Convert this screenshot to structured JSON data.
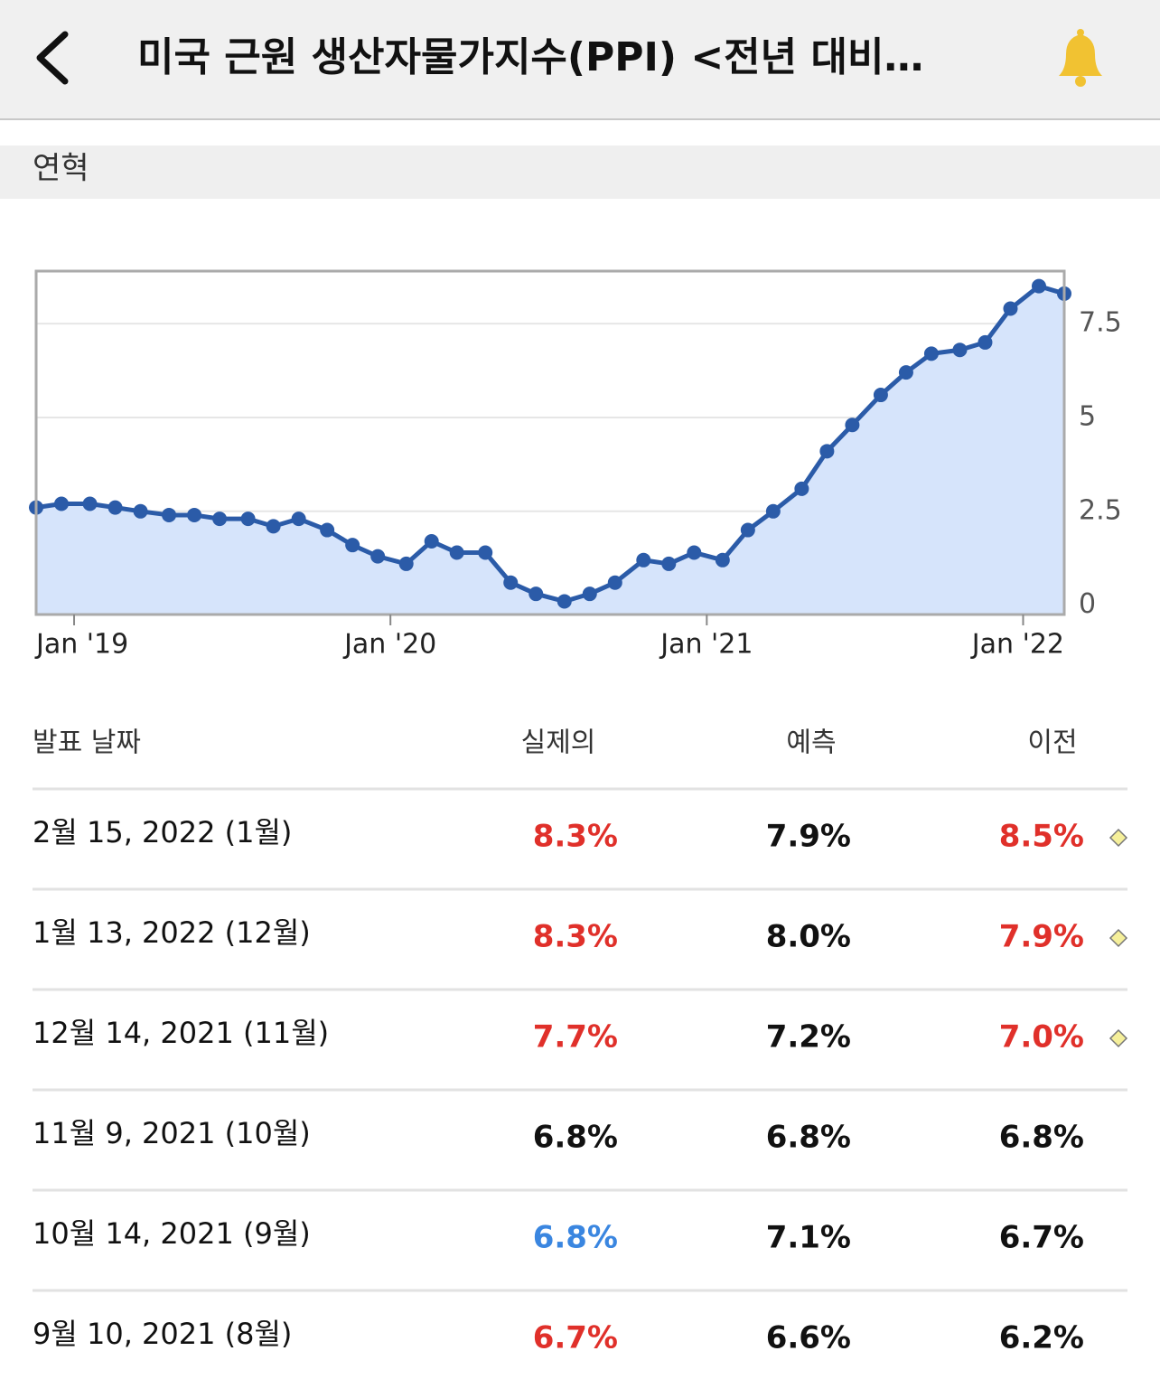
{
  "header": {
    "title": "미국 근원 생산자물가지수(PPI) <전년 대비…"
  },
  "section": {
    "label": "연혁"
  },
  "chart_data": {
    "type": "area",
    "color": "#2b5ba8",
    "fill": "#d6e4fb",
    "grid": true,
    "x": [
      2018.88,
      2018.96,
      2019.05,
      2019.13,
      2019.21,
      2019.3,
      2019.38,
      2019.46,
      2019.55,
      2019.63,
      2019.71,
      2019.8,
      2019.88,
      2019.96,
      2020.05,
      2020.13,
      2020.21,
      2020.3,
      2020.38,
      2020.46,
      2020.55,
      2020.63,
      2020.71,
      2020.8,
      2020.88,
      2020.96,
      2021.05,
      2021.13,
      2021.21,
      2021.3,
      2021.38,
      2021.46,
      2021.55,
      2021.63,
      2021.71,
      2021.8,
      2021.88,
      2021.96,
      2022.05,
      2022.13
    ],
    "values": [
      2.6,
      2.7,
      2.7,
      2.6,
      2.5,
      2.4,
      2.4,
      2.3,
      2.3,
      2.1,
      2.3,
      2.0,
      1.6,
      1.3,
      1.1,
      1.7,
      1.4,
      1.4,
      0.6,
      0.3,
      0.1,
      0.3,
      0.6,
      1.2,
      1.1,
      1.4,
      1.2,
      2.0,
      2.5,
      3.1,
      4.1,
      4.8,
      5.6,
      6.2,
      6.7,
      6.8,
      7.0,
      7.9,
      8.5,
      8.3
    ],
    "xlim": [
      2018.88,
      2022.13
    ],
    "xticks": [
      {
        "value": 2019,
        "label": "Jan '19"
      },
      {
        "value": 2020,
        "label": "Jan '20"
      },
      {
        "value": 2021,
        "label": "Jan '21"
      },
      {
        "value": 2022,
        "label": "Jan '22"
      }
    ],
    "ylim": [
      -0.25,
      8.9
    ],
    "yticks": [
      0,
      2.5,
      5,
      7.5
    ]
  },
  "table": {
    "columns": [
      "발표 날짜",
      "실제의",
      "예측",
      "이전"
    ],
    "rows": [
      {
        "date": "2월 15, 2022 (1월)",
        "actual": "8.3%",
        "forecast": "7.9%",
        "previous": "8.5%",
        "actual_color": "#e0302a",
        "previous_color": "#e0302a",
        "revised": true
      },
      {
        "date": "1월 13, 2022 (12월)",
        "actual": "8.3%",
        "forecast": "8.0%",
        "previous": "7.9%",
        "actual_color": "#e0302a",
        "previous_color": "#e0302a",
        "revised": true
      },
      {
        "date": "12월 14, 2021 (11월)",
        "actual": "7.7%",
        "forecast": "7.2%",
        "previous": "7.0%",
        "actual_color": "#e0302a",
        "previous_color": "#e0302a",
        "revised": true
      },
      {
        "date": "11월 9, 2021 (10월)",
        "actual": "6.8%",
        "forecast": "6.8%",
        "previous": "6.8%",
        "actual_color": "#111111",
        "previous_color": "#111111",
        "revised": false
      },
      {
        "date": "10월 14, 2021 (9월)",
        "actual": "6.8%",
        "forecast": "7.1%",
        "previous": "6.7%",
        "actual_color": "#3a86e0",
        "previous_color": "#111111",
        "revised": false
      },
      {
        "date": "9월 10, 2021 (8월)",
        "actual": "6.7%",
        "forecast": "6.6%",
        "previous": "6.2%",
        "actual_color": "#e0302a",
        "previous_color": "#111111",
        "revised": false
      }
    ]
  }
}
